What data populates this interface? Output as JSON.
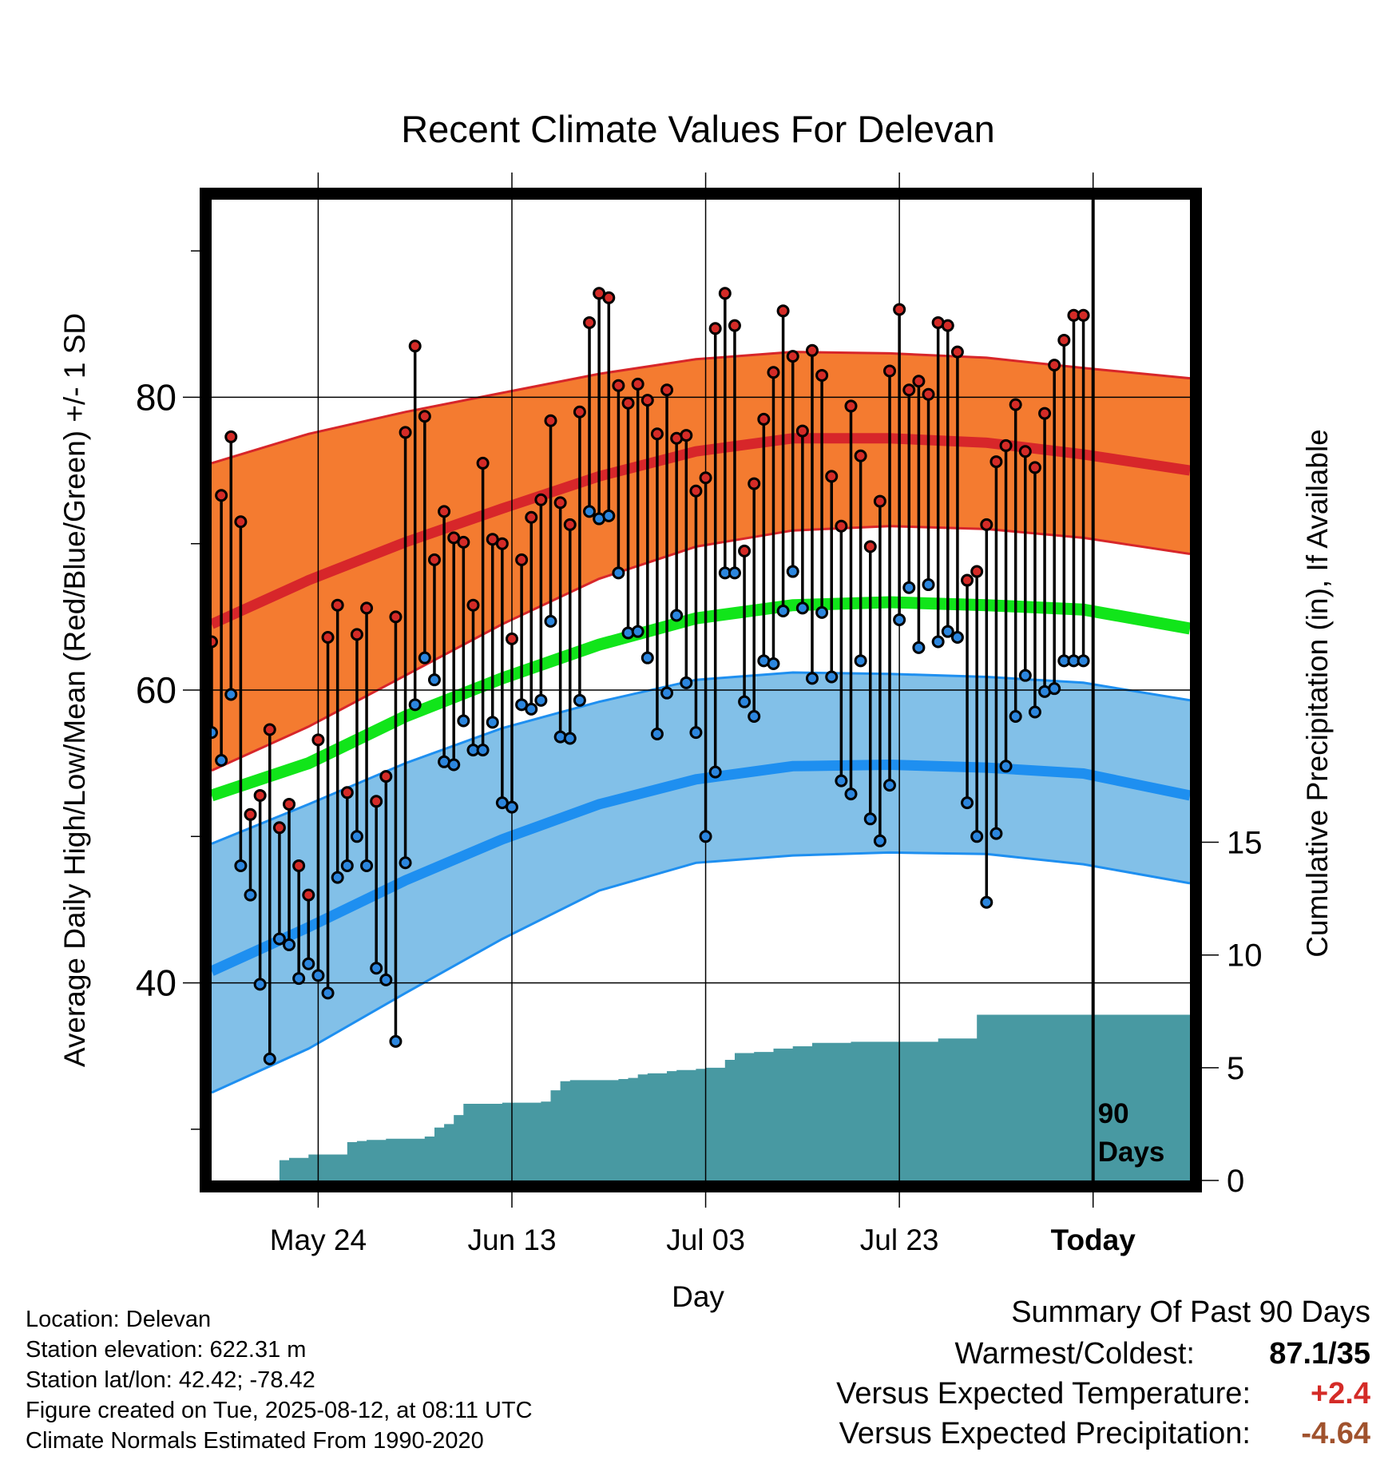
{
  "colors": {
    "high_band": "#f47b30",
    "high_mean": "#d7262a",
    "low_band": "#82c0e8",
    "low_mean": "#1e8ff0",
    "mean": "#11e51a",
    "precip": "#4899a2",
    "high_dot": "#d42b27",
    "low_dot": "#2c86de",
    "positive": "#d42b27",
    "precip_anomaly": "#a0522d"
  },
  "chart_data": {
    "type": "line",
    "title": "Recent Climate Values For Delevan",
    "xlabel": "Day",
    "ylabel": "Average Daily High/Low/Mean (Red/Blue/Green) +/- 1 SD",
    "y2label": "Cumulative Precipitation (in), If Available",
    "ylim": [
      26.5,
      93.5
    ],
    "y2lim": [
      0,
      43.5
    ],
    "xlim": [
      0,
      101
    ],
    "x_ticks": [
      {
        "x": 11,
        "label": "May 24"
      },
      {
        "x": 31,
        "label": "Jun 13"
      },
      {
        "x": 51,
        "label": "Jul 03"
      },
      {
        "x": 71,
        "label": "Jul 23"
      },
      {
        "x": 91,
        "label": "Today"
      }
    ],
    "y_ticks": [
      40,
      60,
      80
    ],
    "y_minor_ticks": [
      30,
      50,
      70,
      90
    ],
    "y2_ticks": [
      0,
      5,
      10,
      15
    ],
    "today_x": 91,
    "today_label_line1": "90",
    "today_label_line2": "Days",
    "normals": {
      "x": [
        0,
        10,
        20,
        30,
        40,
        50,
        60,
        70,
        80,
        90,
        101
      ],
      "high_mean": [
        64.5,
        67.5,
        70.1,
        72.4,
        74.6,
        76.3,
        77.2,
        77.2,
        76.9,
        76.1,
        75.0
      ],
      "high_upper": [
        75.5,
        77.5,
        79.0,
        80.3,
        81.6,
        82.6,
        83.1,
        83.0,
        82.7,
        82.0,
        81.3
      ],
      "high_lower": [
        54.5,
        57.5,
        61.0,
        64.5,
        67.6,
        69.8,
        70.9,
        71.2,
        71.0,
        70.4,
        69.3
      ],
      "mean": [
        52.8,
        55.0,
        58.2,
        60.8,
        63.1,
        64.9,
        65.8,
        66.0,
        65.8,
        65.5,
        64.2
      ],
      "low_mean": [
        40.8,
        43.8,
        47.0,
        49.8,
        52.2,
        53.9,
        54.8,
        54.9,
        54.7,
        54.3,
        52.8
      ],
      "low_upper": [
        49.5,
        52.2,
        55.0,
        57.4,
        59.2,
        60.7,
        61.2,
        61.1,
        60.9,
        60.5,
        59.3
      ],
      "low_lower": [
        32.5,
        35.5,
        39.3,
        43.0,
        46.3,
        48.2,
        48.7,
        48.9,
        48.8,
        48.1,
        46.8
      ]
    },
    "daily": {
      "x": [
        0,
        1,
        2,
        3,
        4,
        5,
        6,
        7,
        8,
        9,
        10,
        11,
        12,
        13,
        14,
        15,
        16,
        17,
        18,
        19,
        20,
        21,
        22,
        23,
        24,
        25,
        26,
        27,
        28,
        29,
        30,
        31,
        32,
        33,
        34,
        35,
        36,
        37,
        38,
        39,
        40,
        41,
        42,
        43,
        44,
        45,
        46,
        47,
        48,
        49,
        50,
        51,
        52,
        53,
        54,
        55,
        56,
        57,
        58,
        59,
        60,
        61,
        62,
        63,
        64,
        65,
        66,
        67,
        68,
        69,
        70,
        71,
        72,
        73,
        74,
        75,
        76,
        77,
        78,
        79,
        80,
        81,
        82,
        83,
        84,
        85,
        86,
        87,
        88,
        89,
        90
      ],
      "high": [
        63.3,
        73.3,
        77.3,
        71.5,
        51.5,
        52.8,
        57.3,
        50.6,
        52.2,
        48.0,
        46.0,
        56.6,
        63.6,
        65.8,
        53.0,
        63.8,
        65.6,
        52.4,
        54.1,
        65.0,
        77.6,
        83.5,
        78.7,
        68.9,
        72.2,
        70.4,
        70.1,
        65.8,
        75.5,
        70.3,
        70.0,
        63.5,
        68.9,
        71.8,
        73.0,
        78.4,
        72.8,
        71.3,
        79.0,
        85.1,
        87.1,
        86.8,
        80.8,
        79.6,
        80.9,
        79.8,
        77.5,
        80.5,
        77.2,
        77.4,
        73.6,
        74.5,
        84.7,
        87.1,
        84.9,
        69.5,
        74.1,
        78.5,
        81.7,
        85.9,
        82.8,
        77.7,
        83.2,
        81.5,
        74.6,
        71.2,
        79.4,
        76.0,
        69.8,
        72.9,
        81.8,
        86.0,
        80.5,
        81.1,
        80.2,
        85.1,
        84.9,
        83.1,
        67.5,
        68.1,
        71.3,
        75.6,
        76.7,
        79.5,
        76.3,
        75.2,
        78.9,
        82.2,
        83.9,
        85.6,
        85.6
      ],
      "low": [
        57.1,
        55.2,
        59.7,
        48.0,
        46.0,
        39.9,
        34.8,
        43.0,
        42.6,
        40.3,
        41.3,
        40.5,
        39.3,
        47.2,
        48.0,
        50.0,
        48.0,
        41.0,
        40.2,
        36.0,
        48.2,
        59.0,
        62.2,
        60.7,
        55.1,
        54.9,
        57.9,
        55.9,
        55.9,
        57.8,
        52.3,
        52.0,
        59.0,
        58.7,
        59.3,
        64.7,
        56.8,
        56.7,
        59.3,
        72.2,
        71.7,
        71.9,
        68.0,
        63.9,
        64.0,
        62.2,
        57.0,
        59.8,
        65.1,
        60.5,
        57.1,
        50.0,
        54.4,
        68.0,
        68.0,
        59.2,
        58.2,
        62.0,
        61.8,
        65.4,
        68.1,
        65.6,
        60.8,
        65.3,
        60.9,
        53.8,
        52.9,
        62.0,
        51.2,
        49.7,
        53.5,
        64.8,
        67.0,
        62.9,
        67.2,
        63.3,
        64.0,
        63.6,
        52.3,
        50.0,
        45.5,
        50.2,
        54.8,
        58.2,
        61.0,
        58.5,
        59.9,
        60.1,
        62.0,
        62.0,
        62.0
      ]
    },
    "precip": {
      "x": [
        6,
        7,
        8,
        9,
        10,
        11,
        12,
        13,
        14,
        15,
        16,
        17,
        18,
        19,
        20,
        21,
        22,
        23,
        24,
        25,
        26,
        27,
        28,
        29,
        30,
        31,
        32,
        33,
        34,
        35,
        36,
        37,
        38,
        39,
        40,
        41,
        42,
        43,
        44,
        45,
        46,
        47,
        48,
        49,
        50,
        51,
        52,
        53,
        54,
        55,
        56,
        57,
        58,
        59,
        60,
        61,
        62,
        63,
        64,
        65,
        66,
        67,
        68,
        69,
        70,
        71,
        72,
        73,
        74,
        75,
        76,
        77,
        78,
        79,
        80,
        81,
        82,
        83,
        84,
        85,
        86,
        87,
        88,
        89,
        90,
        101
      ],
      "values": [
        0.0,
        0.9,
        1.0,
        1.0,
        1.15,
        1.15,
        1.15,
        1.15,
        1.7,
        1.75,
        1.8,
        1.8,
        1.85,
        1.85,
        1.85,
        1.85,
        1.95,
        2.35,
        2.5,
        2.9,
        3.4,
        3.4,
        3.4,
        3.4,
        3.45,
        3.45,
        3.45,
        3.45,
        3.5,
        4.0,
        4.4,
        4.45,
        4.45,
        4.45,
        4.45,
        4.45,
        4.5,
        4.55,
        4.7,
        4.75,
        4.75,
        4.85,
        4.9,
        4.9,
        4.95,
        5.0,
        5.0,
        5.35,
        5.65,
        5.65,
        5.7,
        5.7,
        5.85,
        5.85,
        5.95,
        5.95,
        6.1,
        6.1,
        6.1,
        6.1,
        6.15,
        6.15,
        6.15,
        6.15,
        6.15,
        6.15,
        6.15,
        6.15,
        6.15,
        6.3,
        6.3,
        6.3,
        6.3,
        7.35,
        7.35,
        7.35,
        7.35,
        7.35,
        7.35,
        7.35,
        7.35,
        7.35,
        7.35,
        7.35,
        7.35,
        7.35
      ]
    }
  },
  "meta": {
    "location": "Location: Delevan",
    "elevation": "Station elevation: 622.31 m",
    "latlon": "Station lat/lon: 42.42; -78.42",
    "created": "Figure created on Tue, 2025-08-12, at 08:11 UTC",
    "normals": "Climate Normals Estimated From 1990-2020"
  },
  "summary": {
    "title": "Summary Of Past 90 Days",
    "warmest_label": "Warmest/Coldest:",
    "warmest_value": "87.1/35",
    "temp_label": "Versus Expected Temperature:",
    "temp_value": "+2.4",
    "precip_label": "Versus Expected Precipitation:",
    "precip_value": "-4.64"
  }
}
